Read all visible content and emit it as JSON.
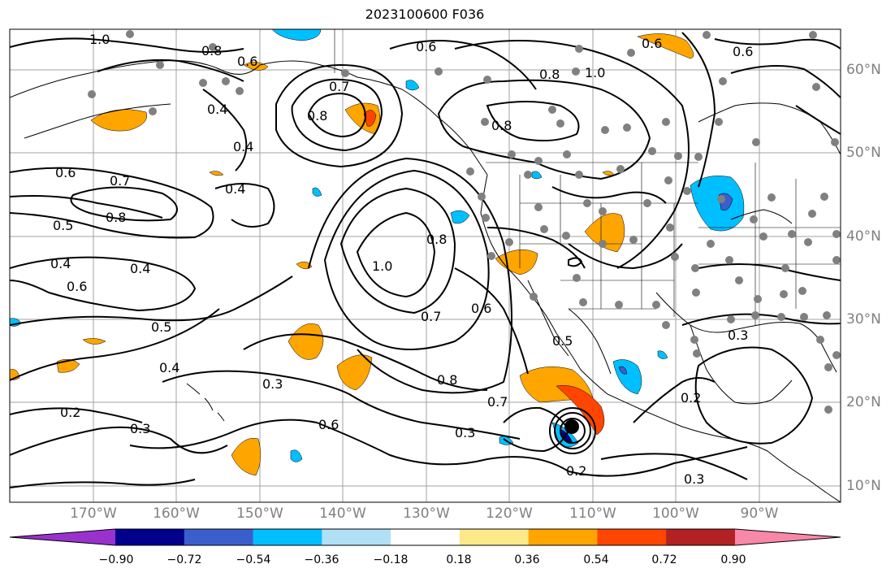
{
  "title": "2023100600 F036",
  "lat_labels": [
    "60°N",
    "50°N",
    "40°N",
    "30°N",
    "20°N",
    "10°N"
  ],
  "lon_labels": [
    "170°W",
    "160°W",
    "150°W",
    "140°W",
    "130°W",
    "120°W",
    "110°W",
    "100°W",
    "90°W"
  ],
  "colorbar": {
    "colors": [
      "#9932cc",
      "#00008b",
      "#3a5fcd",
      "#00bfff",
      "#b0e0f6",
      "#ffffff",
      "#fde98a",
      "#ffa500",
      "#ff4500",
      "#b22222",
      "#f888a8"
    ],
    "tick_labels": [
      "−0.90",
      "−0.72",
      "−0.54",
      "−0.36",
      "−0.18",
      "0.18",
      "0.36",
      "0.54",
      "0.72",
      "0.90"
    ]
  },
  "contour_labels": [
    "1.0",
    "0.8",
    "0.6",
    "0.6",
    "0.6",
    "0.7",
    "0.8",
    "0.4",
    "0.4",
    "0.6",
    "0.7",
    "0.8",
    "0.5",
    "0.4",
    "0.4",
    "0.6",
    "0.5",
    "0.4",
    "0.3",
    "0.2",
    "0.3",
    "0.4",
    "1.0",
    "0.8",
    "0.7",
    "0.6",
    "0.8",
    "0.5",
    "0.3",
    "0.2",
    "0.6",
    "0.8",
    "1.0",
    "0.8",
    "0.6",
    "0.3",
    "0.2",
    "0.3",
    "0.7"
  ]
}
